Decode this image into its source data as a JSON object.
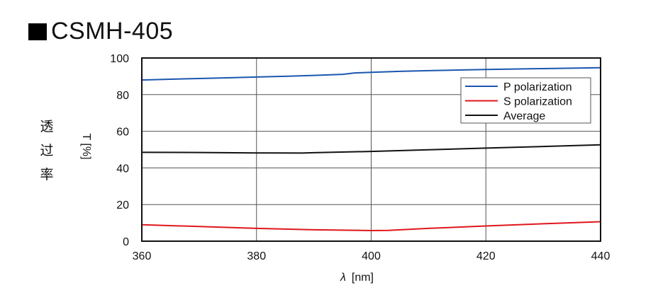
{
  "header": {
    "title": "CSMH-405"
  },
  "y_axis_label_cjk": [
    "透",
    "过",
    "率"
  ],
  "chart_data": {
    "type": "line",
    "title": "CSMH-405",
    "xlabel_symbol": "λ",
    "xlabel_unit": "[nm]",
    "ylabel": "T [%]",
    "xlim": [
      360,
      440
    ],
    "ylim": [
      0,
      100
    ],
    "xticks": [
      360,
      380,
      400,
      420,
      440
    ],
    "yticks": [
      0,
      20,
      40,
      60,
      80,
      100
    ],
    "grid": true,
    "legend_position": "top-right",
    "series": [
      {
        "name": "P polarization",
        "color": "#1a56b0",
        "x": [
          360,
          365,
          370,
          375,
          380,
          385,
          390,
          395,
          397,
          400,
          405,
          410,
          420,
          430,
          440
        ],
        "y": [
          88.0,
          88.4,
          88.8,
          89.2,
          89.6,
          90.0,
          90.5,
          91.1,
          91.8,
          92.2,
          92.7,
          93.1,
          93.7,
          94.2,
          94.7
        ]
      },
      {
        "name": "S polarization",
        "color": "#e0161d",
        "x": [
          360,
          370,
          380,
          390,
          400,
          403,
          410,
          420,
          430,
          440
        ],
        "y": [
          9.0,
          8.0,
          7.0,
          6.2,
          5.8,
          5.9,
          7.0,
          8.3,
          9.5,
          10.6
        ]
      },
      {
        "name": "Average",
        "color": "#111111",
        "x": [
          360,
          370,
          380,
          388,
          390,
          400,
          410,
          420,
          430,
          440
        ],
        "y": [
          48.5,
          48.4,
          48.2,
          48.1,
          48.3,
          49.0,
          49.9,
          50.8,
          51.7,
          52.6
        ]
      }
    ]
  }
}
